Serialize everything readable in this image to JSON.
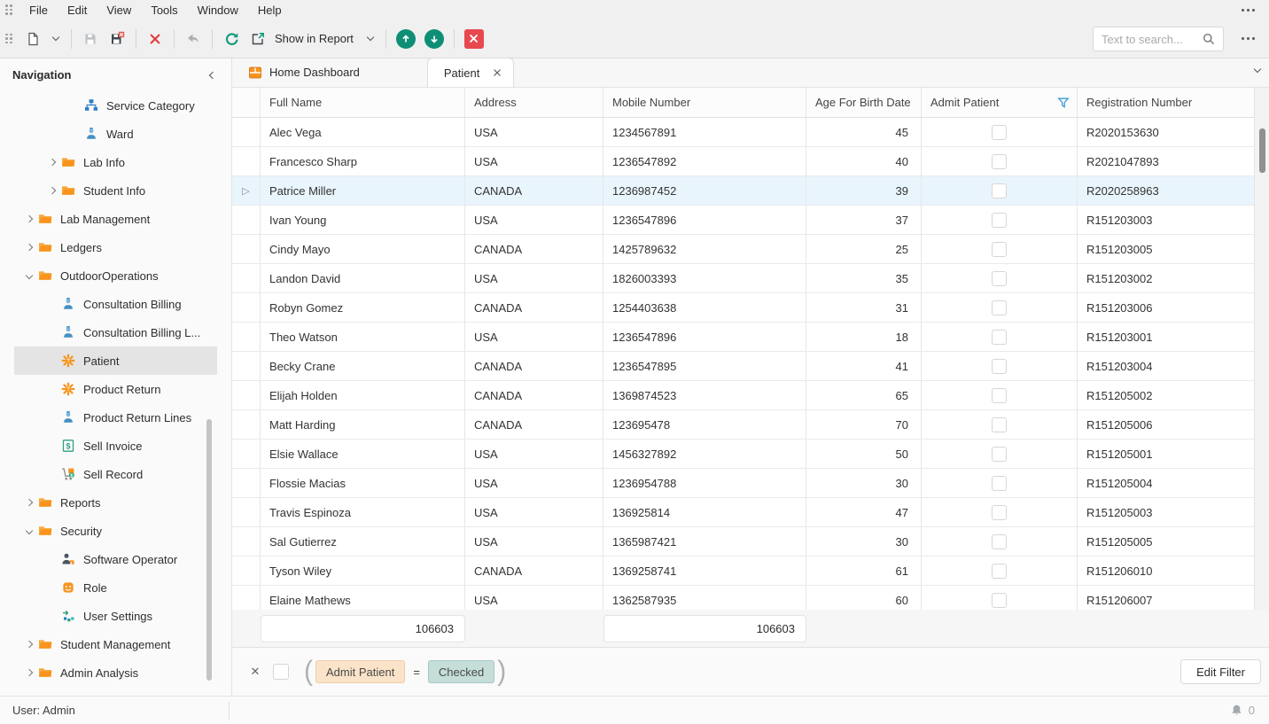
{
  "menu_bar": {
    "items": [
      "File",
      "Edit",
      "View",
      "Tools",
      "Window",
      "Help"
    ]
  },
  "toolbar": {
    "show_in_report_label": "Show in Report",
    "search_placeholder": "Text to search..."
  },
  "navigation": {
    "title": "Navigation",
    "items": [
      {
        "label": "Service Category",
        "icon": "org-chart",
        "indent": 3
      },
      {
        "label": "Ward",
        "icon": "person-blue",
        "indent": 3
      },
      {
        "label": "Lab Info",
        "icon": "folder",
        "indent": 2,
        "arrow": "right"
      },
      {
        "label": "Student Info",
        "icon": "folder",
        "indent": 2,
        "arrow": "right"
      },
      {
        "label": "Lab Management",
        "icon": "folder",
        "indent": 1,
        "arrow": "right"
      },
      {
        "label": "Ledgers",
        "icon": "folder",
        "indent": 1,
        "arrow": "right"
      },
      {
        "label": "OutdoorOperations",
        "icon": "folder",
        "indent": 1,
        "arrow": "down"
      },
      {
        "label": "Consultation Billing",
        "icon": "person-blue",
        "indent": 2
      },
      {
        "label": "Consultation Billing L...",
        "icon": "person-blue",
        "indent": 2
      },
      {
        "label": "Patient",
        "icon": "gear-orange",
        "indent": 2,
        "selected": true
      },
      {
        "label": "Product Return",
        "icon": "gear-orange",
        "indent": 2
      },
      {
        "label": "Product Return Lines",
        "icon": "person-blue",
        "indent": 2
      },
      {
        "label": "Sell Invoice",
        "icon": "invoice",
        "indent": 2
      },
      {
        "label": "Sell Record",
        "icon": "cart",
        "indent": 2
      },
      {
        "label": "Reports",
        "icon": "folder",
        "indent": 1,
        "arrow": "right"
      },
      {
        "label": "Security",
        "icon": "folder",
        "indent": 1,
        "arrow": "down"
      },
      {
        "label": "Software Operator",
        "icon": "operator",
        "indent": 2
      },
      {
        "label": "Role",
        "icon": "mask",
        "indent": 2
      },
      {
        "label": "User Settings",
        "icon": "user-settings",
        "indent": 2
      },
      {
        "label": "Student Management",
        "icon": "folder",
        "indent": 1,
        "arrow": "right"
      },
      {
        "label": "Admin Analysis",
        "icon": "folder",
        "indent": 1,
        "arrow": "right"
      }
    ]
  },
  "tabs": [
    {
      "label": "Home Dashboard",
      "icon": "dashboard",
      "active": false
    },
    {
      "label": "Patient",
      "active": true,
      "closable": true
    }
  ],
  "grid": {
    "columns": [
      "Full Name",
      "Address",
      "Mobile Number",
      "Age For Birth Date",
      "Admit Patient",
      "Registration Number"
    ],
    "selected_row_index": 2,
    "rows": [
      {
        "full_name": "Alec Vega",
        "address": "USA",
        "mobile_number": "1234567891",
        "age": "45",
        "admit": false,
        "registration_number": "R2020153630"
      },
      {
        "full_name": "Francesco Sharp",
        "address": "USA",
        "mobile_number": "1236547892",
        "age": "40",
        "admit": false,
        "registration_number": "R2021047893"
      },
      {
        "full_name": "Patrice Miller",
        "address": "CANADA",
        "mobile_number": "1236987452",
        "age": "39",
        "admit": false,
        "registration_number": "R2020258963"
      },
      {
        "full_name": "Ivan Young",
        "address": "USA",
        "mobile_number": "1236547896",
        "age": "37",
        "admit": false,
        "registration_number": "R151203003"
      },
      {
        "full_name": "Cindy Mayo",
        "address": "CANADA",
        "mobile_number": "1425789632",
        "age": "25",
        "admit": false,
        "registration_number": "R151203005"
      },
      {
        "full_name": "Landon David",
        "address": "USA",
        "mobile_number": "1826003393",
        "age": "35",
        "admit": false,
        "registration_number": "R151203002"
      },
      {
        "full_name": "Robyn Gomez",
        "address": "CANADA",
        "mobile_number": "1254403638",
        "age": "31",
        "admit": false,
        "registration_number": "R151203006"
      },
      {
        "full_name": "Theo Watson",
        "address": "USA",
        "mobile_number": "1236547896",
        "age": "18",
        "admit": false,
        "registration_number": "R151203001"
      },
      {
        "full_name": "Becky Crane",
        "address": "CANADA",
        "mobile_number": "1236547895",
        "age": "41",
        "admit": false,
        "registration_number": "R151203004"
      },
      {
        "full_name": "Elijah Holden",
        "address": "CANADA",
        "mobile_number": "1369874523",
        "age": "65",
        "admit": false,
        "registration_number": "R151205002"
      },
      {
        "full_name": "Matt Harding",
        "address": "CANADA",
        "mobile_number": "123695478",
        "age": "70",
        "admit": false,
        "registration_number": "R151205006"
      },
      {
        "full_name": "Elsie Wallace",
        "address": "USA",
        "mobile_number": "1456327892",
        "age": "50",
        "admit": false,
        "registration_number": "R151205001"
      },
      {
        "full_name": "Flossie Macias",
        "address": "USA",
        "mobile_number": "1236954788",
        "age": "30",
        "admit": false,
        "registration_number": "R151205004"
      },
      {
        "full_name": "Travis Espinoza",
        "address": "USA",
        "mobile_number": "136925814",
        "age": "47",
        "admit": false,
        "registration_number": "R151205003"
      },
      {
        "full_name": "Sal Gutierrez",
        "address": "USA",
        "mobile_number": "1365987421",
        "age": "30",
        "admit": false,
        "registration_number": "R151205005"
      },
      {
        "full_name": "Tyson Wiley",
        "address": "CANADA",
        "mobile_number": "1369258741",
        "age": "61",
        "admit": false,
        "registration_number": "R151206010"
      },
      {
        "full_name": "Elaine Mathews",
        "address": "USA",
        "mobile_number": "1362587935",
        "age": "60",
        "admit": false,
        "registration_number": "R151206007"
      }
    ],
    "summary": {
      "full_name_total": "106603",
      "mobile_total": "106603"
    }
  },
  "filter_panel": {
    "field_label": "Admit Patient",
    "operator": "=",
    "value_label": "Checked",
    "edit_button_label": "Edit Filter"
  },
  "status_bar": {
    "user_label": "User: Admin",
    "notification_count": "0"
  },
  "colors": {
    "accent_teal": "#0e8f75",
    "accent_red": "#e8484f",
    "accent_orange": "#f7941e",
    "accent_blue": "#2f7fc4",
    "selected_row": "#e9f5fd",
    "filter_chip_field": "#fae3c8",
    "filter_chip_value": "#c5ded9"
  }
}
